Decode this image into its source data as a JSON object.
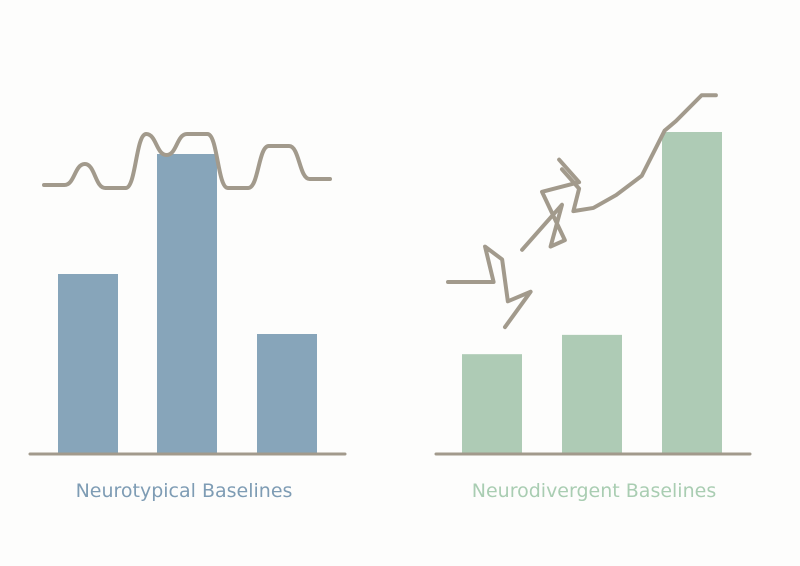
{
  "chart_data": [
    {
      "type": "bar",
      "title": "",
      "xlabel": "Neurotypical Baselines",
      "ylabel": "",
      "categories": [
        "",
        "",
        ""
      ],
      "values": [
        60,
        100,
        40
      ],
      "ylim": [
        0,
        100
      ],
      "grid": false,
      "overlay_line": {
        "type": "line",
        "shape": "smooth-wave",
        "values": [
          89,
          89,
          96,
          88,
          88,
          106,
          99,
          106,
          106,
          88,
          88,
          102,
          102,
          91,
          91
        ]
      },
      "colors": {
        "bar": "#87a5ba",
        "line": "#a29a8c",
        "axis": "#a29a8c",
        "label": "#7e9cb4"
      }
    },
    {
      "type": "bar",
      "title": "",
      "xlabel": "Neurodivergent Baselines",
      "ylabel": "",
      "categories": [
        "",
        "",
        ""
      ],
      "values": [
        31,
        37,
        100
      ],
      "ylim": [
        0,
        100
      ],
      "grid": false,
      "overlay_line": {
        "type": "line",
        "shape": "fragmented-zigzag",
        "segments": [
          [
            [
              0,
              54
            ],
            [
              16,
              54
            ],
            [
              13,
              65
            ],
            [
              19,
              61
            ],
            [
              21,
              48
            ],
            [
              29,
              51
            ],
            [
              20,
              40
            ]
          ],
          [
            [
              26,
              64
            ],
            [
              40,
              78
            ],
            [
              36,
              65
            ],
            [
              41,
              67
            ],
            [
              33,
              82
            ],
            [
              46,
              85
            ],
            [
              39,
              92
            ]
          ],
          [
            [
              40,
              89
            ],
            [
              46,
              83
            ],
            [
              44,
              76
            ],
            [
              51,
              77
            ],
            [
              59,
              81
            ],
            [
              68,
              87
            ],
            [
              76,
              101
            ],
            [
              80,
              104
            ],
            [
              89,
              112
            ],
            [
              94,
              112
            ]
          ]
        ]
      },
      "colors": {
        "bar": "#aecbb5",
        "line": "#a29a8c",
        "axis": "#a29a8c",
        "label": "#a9cdb2"
      }
    }
  ]
}
